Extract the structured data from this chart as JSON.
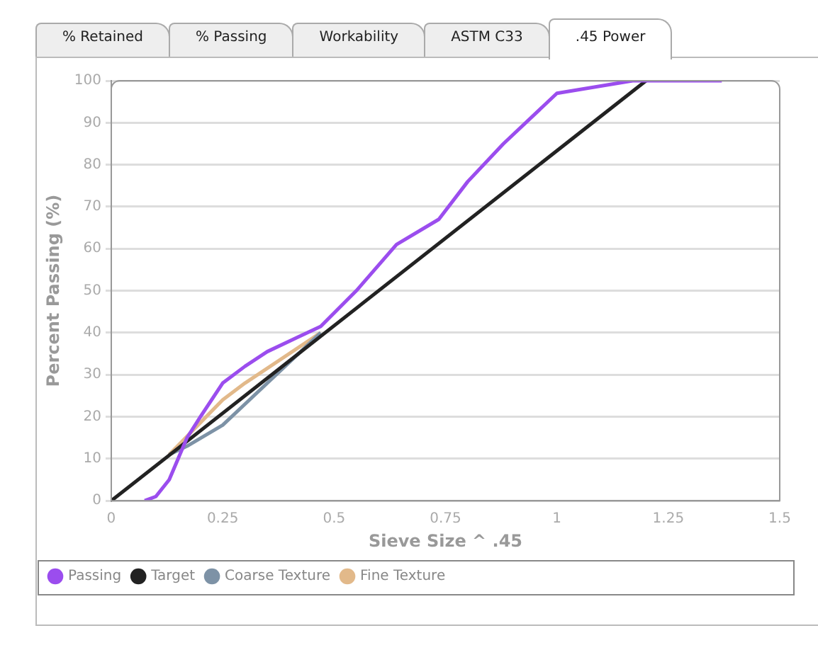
{
  "chart_data": {
    "type": "line",
    "xlabel": "Sieve Size ^ .45",
    "ylabel": "Percent Passing (%)",
    "annotations": [
      "% Retained",
      "% Passing",
      "Workability",
      "ASTM C33",
      ".45 Power"
    ],
    "xlim": [
      0,
      1.5
    ],
    "xticks": [
      0,
      0.25,
      0.5,
      0.75,
      1,
      1.25,
      1.5
    ],
    "ylim": [
      0,
      100
    ],
    "yticks": [
      0,
      10,
      20,
      30,
      40,
      50,
      60,
      70,
      80,
      90,
      100
    ],
    "grid": "y",
    "legend": "bottom",
    "marker": "none",
    "line_style": "solid",
    "series": [
      {
        "name": "Passing",
        "color": "#9b4dee",
        "x": [
          0.075,
          0.1,
          0.13,
          0.17,
          0.2,
          0.25,
          0.3,
          0.35,
          0.42,
          0.47,
          0.55,
          0.64,
          0.735,
          0.8,
          0.88,
          1.0,
          1.17,
          1.37
        ],
        "values": [
          0,
          1,
          5,
          15,
          20,
          28,
          32,
          35.5,
          39,
          41.5,
          50,
          61,
          67,
          76,
          85,
          97,
          100,
          100
        ]
      },
      {
        "name": "Target",
        "color": "#222222",
        "x": [
          0,
          1.2
        ],
        "values": [
          0,
          100
        ]
      },
      {
        "name": "Coarse Texture",
        "color": "#7d92a6",
        "x": [
          0.13,
          0.17,
          0.25,
          0.3,
          0.47
        ],
        "values": [
          11,
          13,
          18,
          23,
          40
        ]
      },
      {
        "name": "Fine Texture",
        "color": "#e2b98a",
        "x": [
          0.13,
          0.25,
          0.3,
          0.47
        ],
        "values": [
          11,
          24,
          28,
          40
        ]
      }
    ]
  }
}
